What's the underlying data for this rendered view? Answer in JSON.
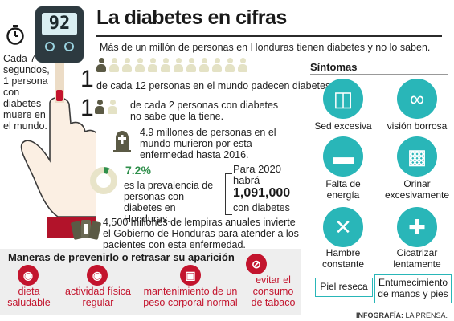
{
  "title": "La diabetes en cifras",
  "meter_value": "92",
  "clock_text": "Cada 7 segundos, 1 persona con diabetes muere en el mundo.",
  "intro": "Más de un millón de personas en Honduras tienen diabetes y no lo saben.",
  "stat_12": {
    "number": "1",
    "text": "de cada 12 personas en el mundo padecen diabetes."
  },
  "stat_2": {
    "number": "1",
    "text": "de cada 2 personas con diabetes no sabe que la tiene."
  },
  "stat_deaths": {
    "text": "4.9 millones de personas en el mundo murieron por esta enfermedad hasta 2016."
  },
  "stat_prevalence": {
    "percent": "7.2%",
    "text": "es la prevalencia de personas con diabetes en Honduras.",
    "value": 7.2
  },
  "stat_2020": {
    "lead": "Para 2020 habrá",
    "number": "1,091,000",
    "tail": "con diabetes"
  },
  "stat_money": {
    "text": "4,500 millones de lempiras anuales invierte el Gobierno de Honduras para atender a los pacientes con esta enfermedad."
  },
  "prevention": {
    "title": "Maneras de prevenirlo o retrasar su aparición",
    "items": [
      {
        "label": "dieta saludable",
        "icon": "food-icon"
      },
      {
        "label": "actividad física regular",
        "icon": "bike-icon"
      },
      {
        "label": "mantenimiento de un peso corporal normal",
        "icon": "scale-icon"
      },
      {
        "label": "evitar el consumo de tabaco",
        "icon": "no-smoking-icon"
      }
    ]
  },
  "symptoms": {
    "title": "Síntomas",
    "items": [
      {
        "label": "Sed excesiva",
        "icon": "glass-icon"
      },
      {
        "label": "visión borrosa",
        "icon": "glasses-icon"
      },
      {
        "label": "Falta de energía",
        "icon": "bed-icon"
      },
      {
        "label": "Orinar excesivamente",
        "icon": "toilet-icon"
      },
      {
        "label": "Hambre constante",
        "icon": "fork-knife-icon"
      },
      {
        "label": "Cicatrizar lentamente",
        "icon": "bandage-icon"
      }
    ],
    "boxes": [
      "Piel reseca",
      "Entumecimiento de manos y pies"
    ]
  },
  "credit": {
    "bold": "INFOGRAFÍA:",
    "rest": " LA PRENSA."
  },
  "colors": {
    "red": "#c3142d",
    "teal": "#29b6b8",
    "green": "#2f8f4b"
  }
}
